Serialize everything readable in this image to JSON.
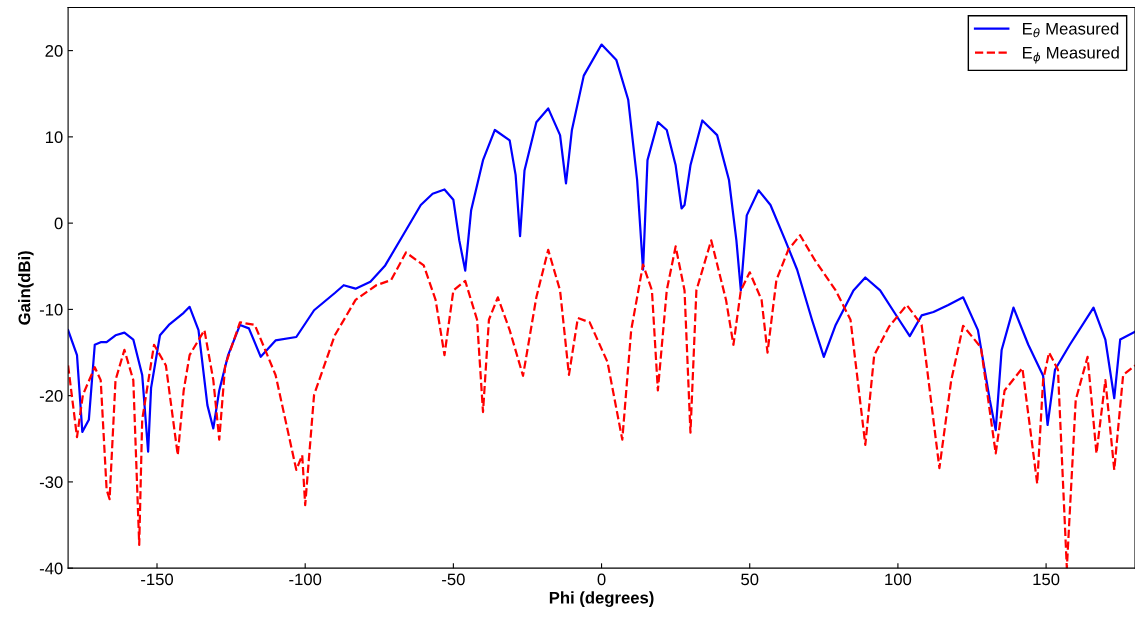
{
  "chart_data": {
    "type": "line",
    "xlabel": "Phi (degrees)",
    "ylabel": "Gain(dBi)",
    "xlim": [
      -180,
      180
    ],
    "ylim": [
      -40,
      25
    ],
    "xticks": [
      -150,
      -100,
      -50,
      0,
      50,
      100,
      150
    ],
    "yticks": [
      -40,
      -30,
      -20,
      -10,
      0,
      10,
      20
    ],
    "grid": false,
    "legend": "top right",
    "marker": "none",
    "series": [
      {
        "name": "E$_{θ}$ Measured",
        "color": "#0000ff",
        "line_style": "solid",
        "x": [
          -180,
          -177,
          -175.2,
          -173,
          -171,
          -169,
          -167,
          -164,
          -161,
          -158,
          -155,
          -153,
          -152,
          -149,
          -146,
          -141,
          -139,
          -136,
          -133,
          -131,
          -129,
          -126,
          -122,
          -119,
          -115,
          -110,
          -103,
          -97,
          -90,
          -87,
          -83,
          -78,
          -73,
          -67,
          -61,
          -57,
          -53,
          -50,
          -48,
          -46,
          -44,
          -40,
          -36,
          -31,
          -29,
          -27.5,
          -26,
          -22,
          -18,
          -14,
          -12,
          -10,
          -6,
          0,
          5,
          9,
          12,
          14,
          15.5,
          19,
          22,
          25,
          27,
          28,
          30,
          34,
          39,
          43,
          45.5,
          47,
          49,
          53,
          57,
          62,
          66,
          71,
          75,
          79,
          85,
          89,
          94,
          100,
          104,
          108,
          112,
          117,
          122,
          127,
          131,
          133,
          135,
          139,
          144,
          149,
          150.5,
          153,
          158,
          166,
          170,
          173,
          175,
          180
        ],
        "values": [
          -12.4,
          -15.3,
          -24.2,
          -22.8,
          -14.1,
          -13.8,
          -13.8,
          -13,
          -12.7,
          -13.5,
          -17.6,
          -26.5,
          -19.1,
          -13,
          -11.8,
          -10.4,
          -9.7,
          -12.4,
          -21.1,
          -23.8,
          -19.4,
          -15.3,
          -11.8,
          -12.2,
          -15.5,
          -13.6,
          -13.2,
          -10.1,
          -8.1,
          -7.2,
          -7.6,
          -6.8,
          -4.9,
          -1.4,
          2.1,
          3.4,
          3.9,
          2.7,
          -2,
          -5.5,
          1.5,
          7.3,
          10.8,
          9.6,
          5.6,
          -1.5,
          6.1,
          11.7,
          13.3,
          10.2,
          4.6,
          10.8,
          17.1,
          20.7,
          18.9,
          14.3,
          5,
          -5.4,
          7.3,
          11.7,
          10.8,
          6.7,
          1.7,
          2.1,
          6.7,
          11.9,
          10.2,
          5,
          -2,
          -7.8,
          0.9,
          3.8,
          2.1,
          -2,
          -5.4,
          -11.2,
          -15.5,
          -11.8,
          -7.8,
          -6.3,
          -7.8,
          -11,
          -13.1,
          -10.7,
          -10.3,
          -9.5,
          -8.6,
          -12.4,
          -20.5,
          -24,
          -14.7,
          -9.8,
          -14.1,
          -17.7,
          -23.4,
          -17,
          -14.1,
          -9.8,
          -13.5,
          -20.3,
          -13.5,
          -12.6
        ]
      },
      {
        "name": "E$_{ϕ}$ Measured",
        "color": "#ff0000",
        "line_style": "dashed",
        "x": [
          -180,
          -177,
          -175,
          -171,
          -169,
          -167,
          -166,
          -164,
          -161,
          -158,
          -156,
          -155,
          -151,
          -147,
          -143,
          -141,
          -139,
          -134,
          -131,
          -129,
          -127,
          -122,
          -117,
          -110,
          -103,
          -101,
          -100,
          -97,
          -90,
          -83,
          -76,
          -71,
          -66,
          -60,
          -56,
          -53,
          -50,
          -46,
          -42,
          -40,
          -38,
          -35,
          -31,
          -26.5,
          -22,
          -18,
          -14,
          -11,
          -8,
          -4,
          2,
          7,
          10,
          14,
          17,
          19,
          22,
          25,
          28,
          30,
          32,
          37,
          42,
          44.5,
          47,
          50,
          54,
          56,
          59,
          63,
          67,
          72,
          79,
          84,
          89,
          92,
          97,
          103,
          108,
          114,
          118,
          122,
          128,
          133,
          136,
          142,
          147,
          149,
          151,
          154,
          157,
          160,
          164,
          167,
          170,
          173,
          176,
          180
        ],
        "values": [
          -16.5,
          -24.8,
          -19.9,
          -16.7,
          -18.2,
          -30.9,
          -32,
          -18.2,
          -14.7,
          -18.2,
          -37.3,
          -22.8,
          -14.1,
          -16.5,
          -26.9,
          -19.4,
          -15.3,
          -12.4,
          -18.2,
          -25.1,
          -16.5,
          -11.5,
          -11.8,
          -17.6,
          -28.6,
          -26.9,
          -32.7,
          -19.9,
          -13,
          -8.9,
          -7.2,
          -6.6,
          -3.4,
          -4.9,
          -8.9,
          -15.3,
          -7.8,
          -6.7,
          -11.2,
          -21.9,
          -11.2,
          -8.6,
          -12.4,
          -17.7,
          -8.6,
          -3.1,
          -7.8,
          -17.6,
          -11,
          -11.5,
          -16.1,
          -25.1,
          -12.4,
          -4.8,
          -7.8,
          -19.4,
          -7.8,
          -2.7,
          -7.8,
          -24.3,
          -7.8,
          -2,
          -8.9,
          -14.1,
          -7.8,
          -5.7,
          -8.9,
          -15,
          -6.6,
          -3.1,
          -1.4,
          -4.3,
          -7.8,
          -11.2,
          -25.7,
          -15.3,
          -12,
          -9.5,
          -11.8,
          -28.4,
          -18.2,
          -11.9,
          -14.4,
          -26.7,
          -19.4,
          -16.8,
          -30.2,
          -18.2,
          -15,
          -17,
          -40,
          -20.5,
          -15.5,
          -26.7,
          -18.2,
          -28.6,
          -17.6,
          -16.5
        ]
      }
    ]
  }
}
